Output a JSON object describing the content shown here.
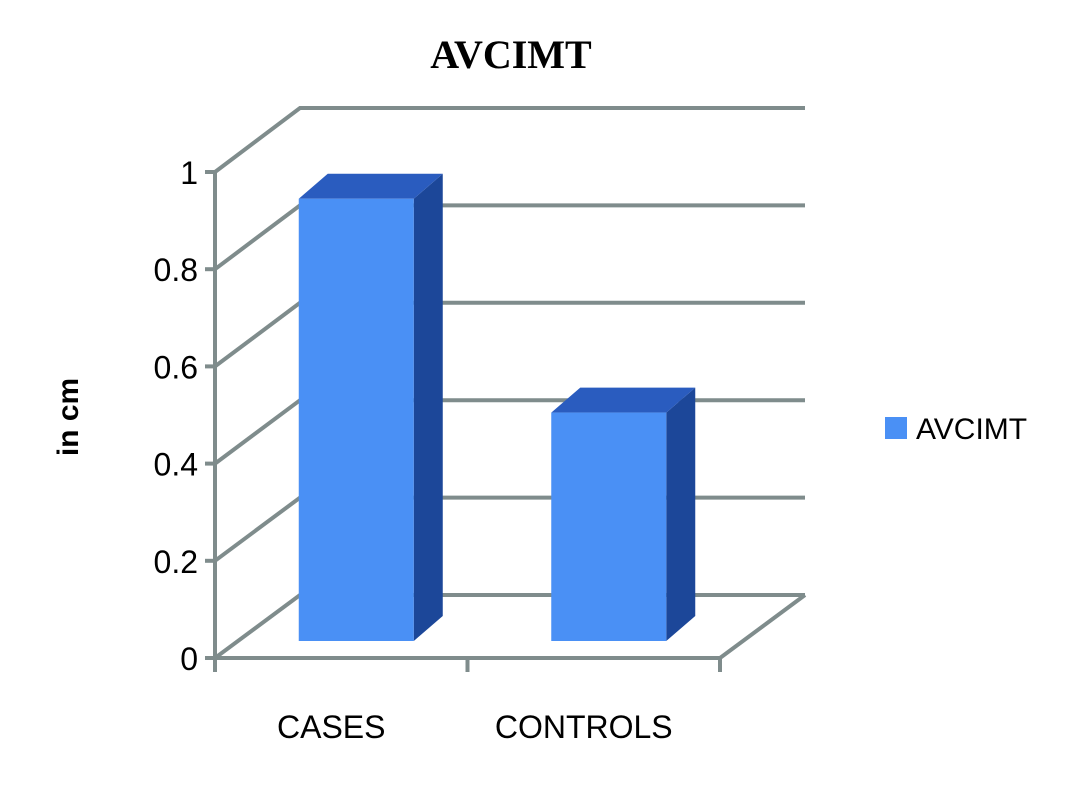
{
  "chart_data": {
    "type": "bar",
    "style": "3d-column",
    "title": "AVCIMT",
    "xlabel": "",
    "ylabel": "in cm",
    "categories": [
      "CASES",
      "CONTROLS"
    ],
    "series": [
      {
        "name": "AVCIMT",
        "values": [
          0.91,
          0.47
        ],
        "color": "#4a90f5"
      }
    ],
    "ylim": [
      0,
      1
    ],
    "yticks": [
      "0",
      "0.2",
      "0.4",
      "0.6",
      "0.8",
      "1"
    ],
    "grid": true,
    "legend": {
      "position": "right",
      "entries": [
        "AVCIMT"
      ]
    },
    "colors": {
      "front": "#4a90f5",
      "side": "#1c4799",
      "top": "#2a5cbf",
      "grid": "#7f8c8c"
    }
  }
}
